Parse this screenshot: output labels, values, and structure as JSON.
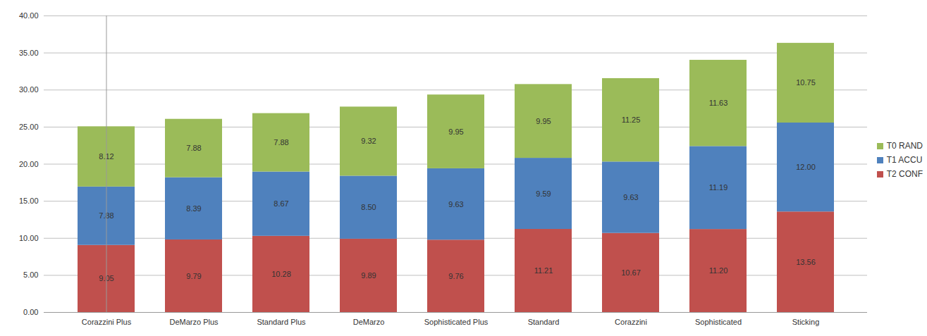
{
  "chart_data": {
    "type": "bar",
    "stacked": true,
    "data_labels": true,
    "grid": true,
    "legend": "right",
    "categories": [
      "Corazzini Plus",
      "DeMarzo Plus",
      "Standard Plus",
      "DeMarzo",
      "Sophisticated Plus",
      "Standard",
      "Corazzini",
      "Sophisticated",
      "Sticking"
    ],
    "ylim": [
      0,
      40
    ],
    "yticks": [
      {
        "value": 0,
        "label": "0.00"
      },
      {
        "value": 5,
        "label": "5.00"
      },
      {
        "value": 10,
        "label": "10.00"
      },
      {
        "value": 15,
        "label": "15.00"
      },
      {
        "value": 20,
        "label": "20.00"
      },
      {
        "value": 25,
        "label": "25.00"
      },
      {
        "value": 30,
        "label": "30.00"
      },
      {
        "value": 35,
        "label": "35.00"
      },
      {
        "value": 40,
        "label": "40.00"
      }
    ],
    "series": [
      {
        "name": "T0 RAND",
        "color": "#9bbb59",
        "values": [
          8.12,
          7.88,
          7.88,
          9.32,
          9.95,
          9.95,
          11.25,
          11.63,
          10.75
        ],
        "value_labels": [
          "8.12",
          "7.88",
          "7.88",
          "9.32",
          "9.95",
          "9.95",
          "11.25",
          "11.63",
          "10.75"
        ]
      },
      {
        "name": "T1 ACCU",
        "color": "#4f81bd",
        "values": [
          7.88,
          8.39,
          8.67,
          8.5,
          9.63,
          9.59,
          9.63,
          11.19,
          12
        ],
        "value_labels": [
          "7.88",
          "8.39",
          "8.67",
          "8.50",
          "9.63",
          "9.59",
          "9.63",
          "11.19",
          "12.00"
        ]
      },
      {
        "name": "T2 CONF",
        "color": "#c0504d",
        "values": [
          9.05,
          9.79,
          10.28,
          9.89,
          9.76,
          11.21,
          10.67,
          11.2,
          13.56
        ],
        "value_labels": [
          "9.05",
          "9.79",
          "10.28",
          "9.89",
          "9.76",
          "11.21",
          "10.67",
          "11.20",
          "13.56"
        ]
      }
    ]
  }
}
